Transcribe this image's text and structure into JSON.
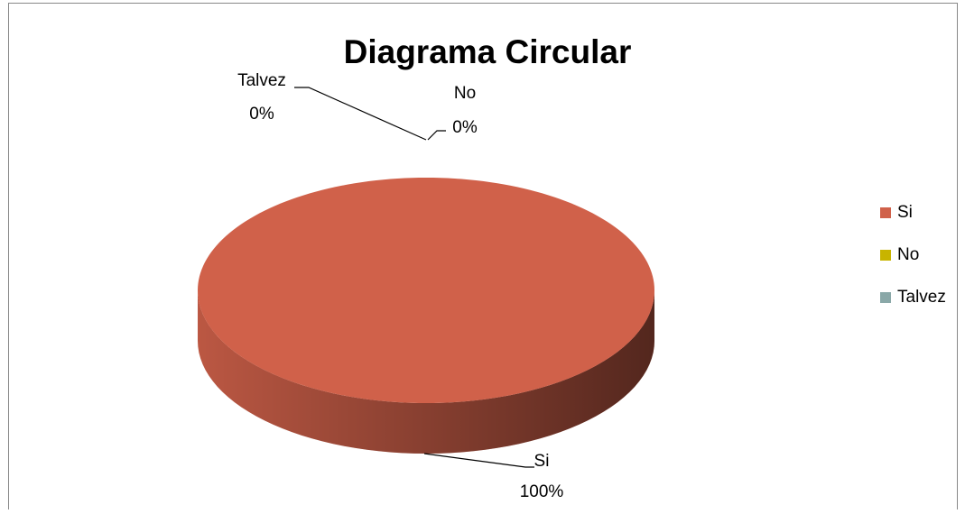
{
  "chart_data": {
    "type": "pie",
    "title": "Diagrama Circular",
    "categories": [
      "Si",
      "No",
      "Talvez"
    ],
    "values": [
      100,
      0,
      0
    ],
    "value_labels": [
      "100%",
      "0%",
      "0%"
    ],
    "colors": [
      "#d0614a",
      "#c8b400",
      "#8aa8a8"
    ],
    "legend": "right"
  }
}
